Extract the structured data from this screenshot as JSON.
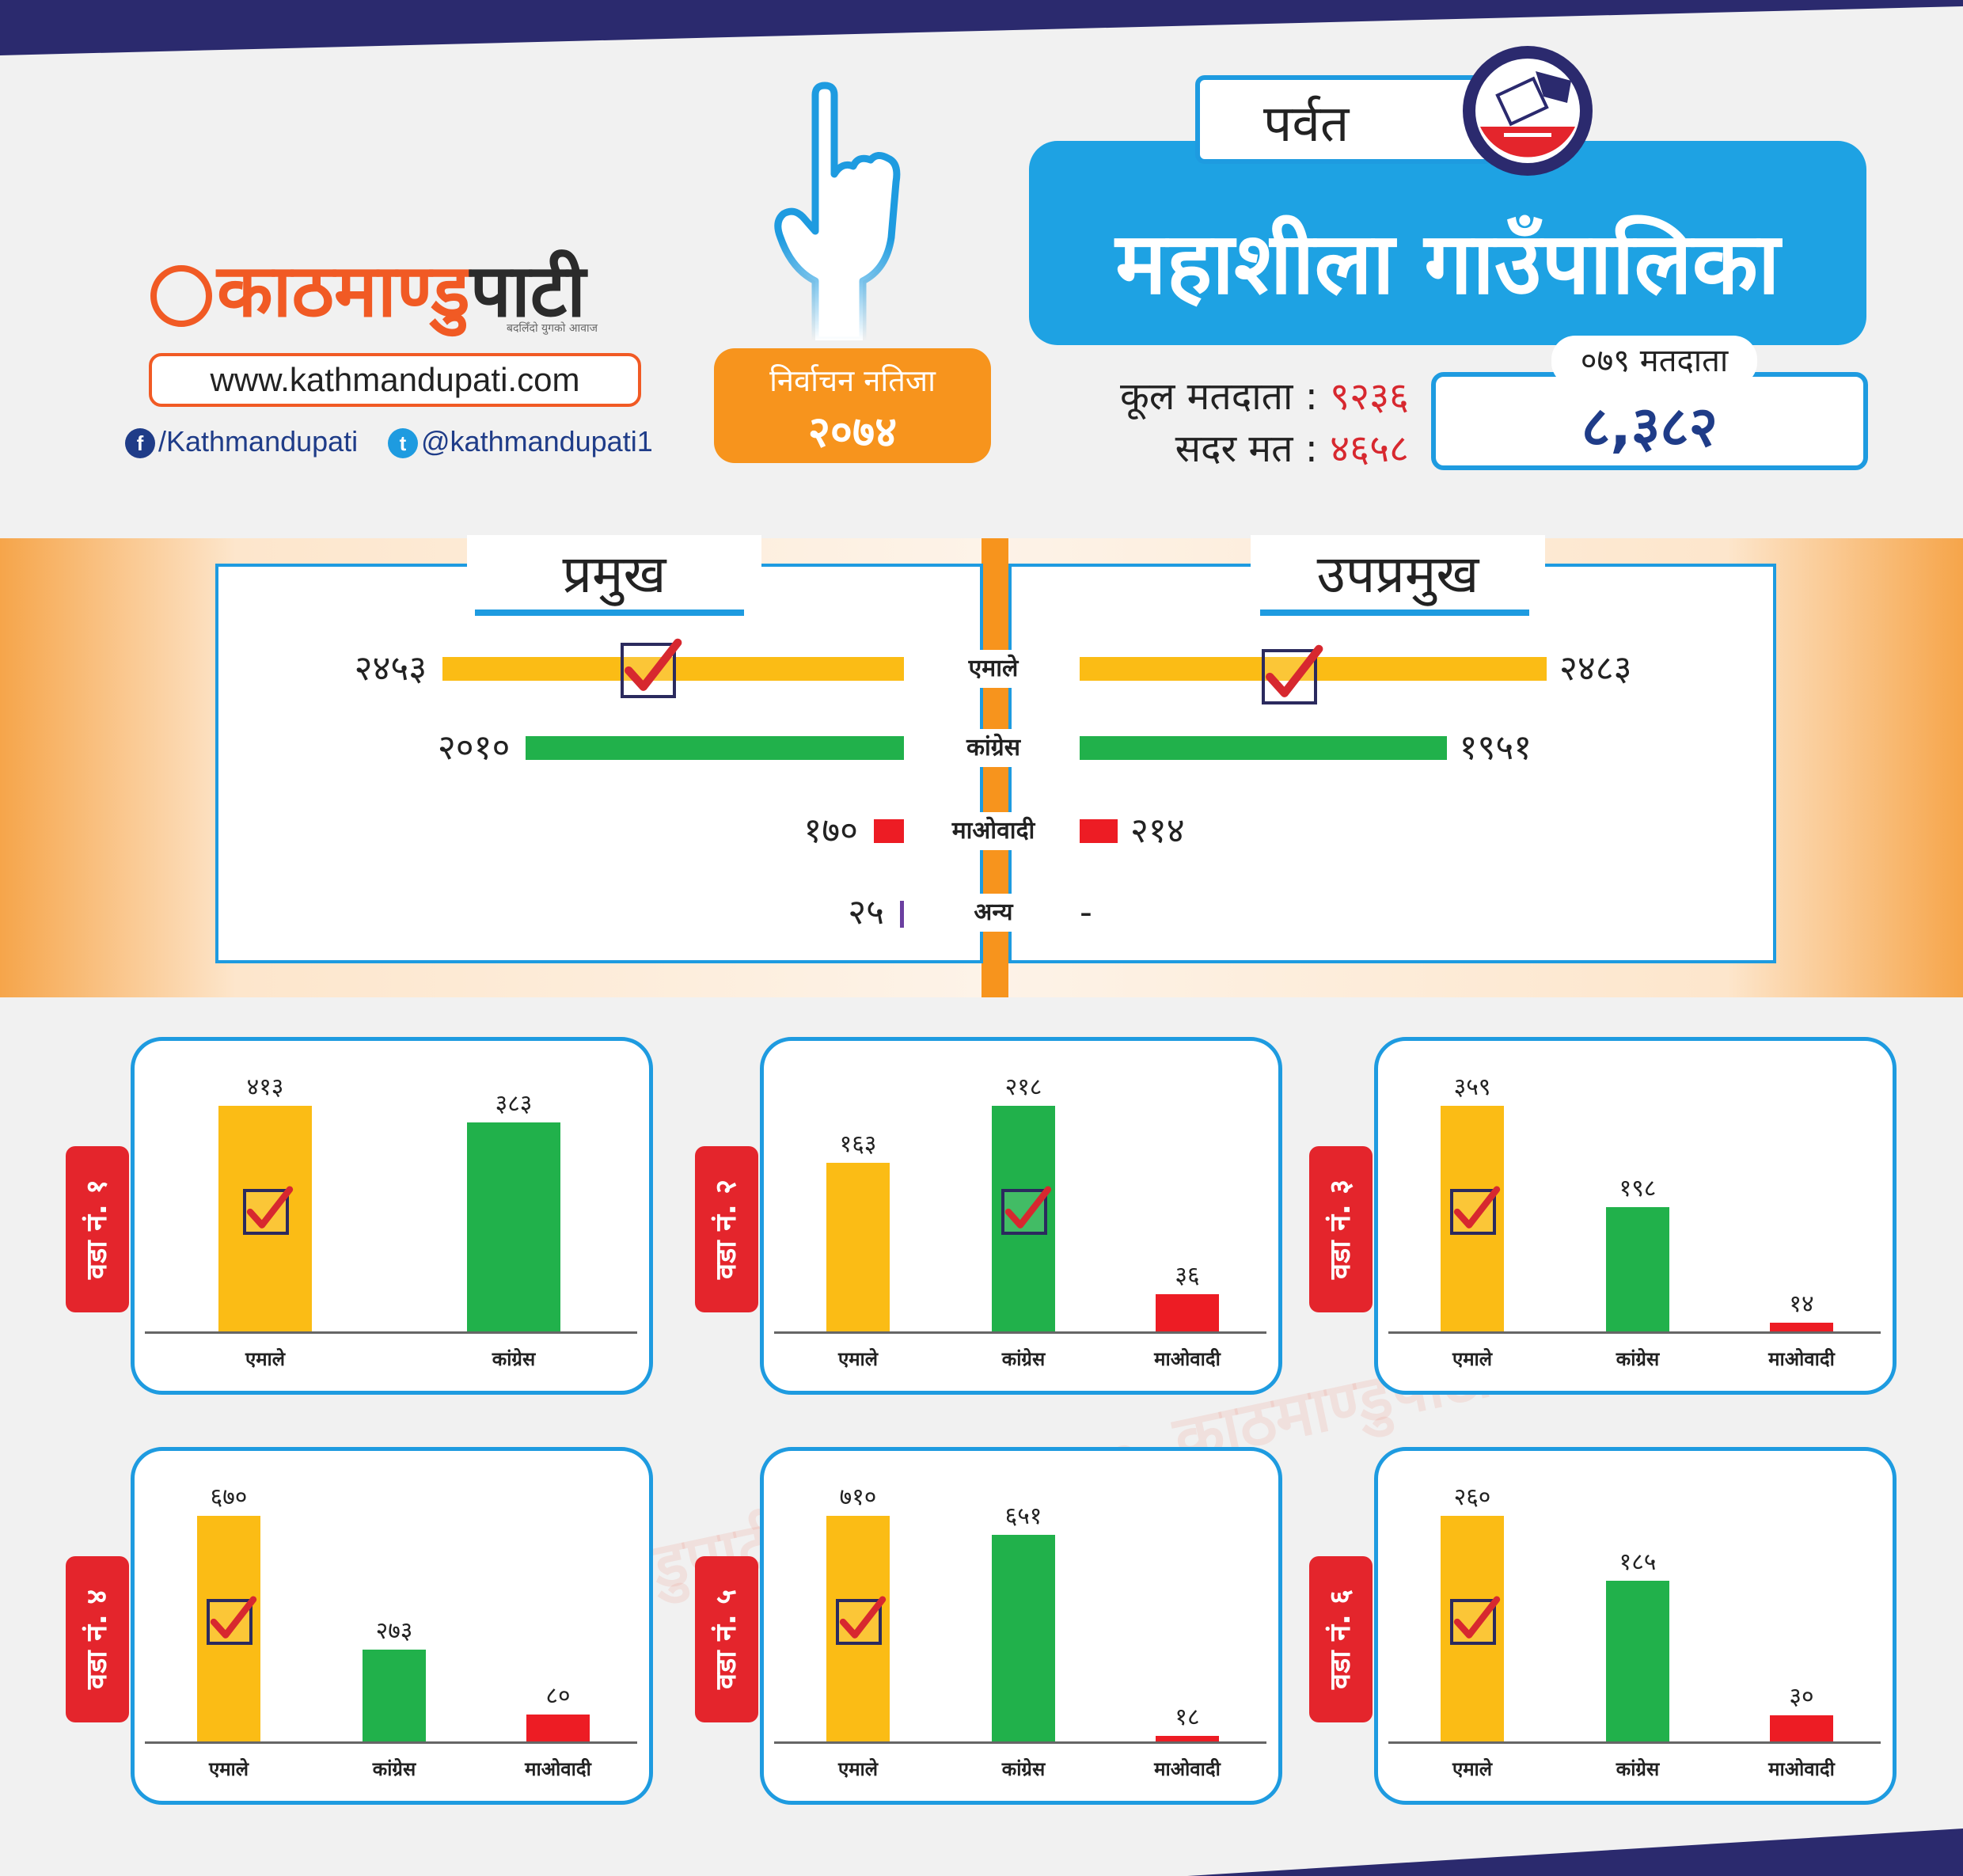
{
  "brand": {
    "logo_prefix": "काठमाण्डु",
    "logo_suffix": "पाटी",
    "tagline": "बदलिँदो युगको आवाज",
    "website": "www.kathmandupati.com",
    "facebook": "/Kathmandupati",
    "twitter": "@kathmandupati1",
    "orange": "#f15a24",
    "blue": "#1e9be0",
    "navy": "#1f3c88"
  },
  "badge": {
    "line1": "निर्वाचन नतिजा",
    "line2": "२०७४"
  },
  "header": {
    "district": "पर्वत",
    "municipality": "महाशीला गाउँपालिका",
    "total_voters_label": "कूल मतदाता :",
    "total_voters_value": "९२३६",
    "valid_votes_label": "सदर मत :",
    "valid_votes_value": "४६५८",
    "voters_079_label": "०७९ मतदाता",
    "voters_079_value": "८,३८२"
  },
  "colors": {
    "एमाले": "#fbbc15",
    "कांग्रेस": "#21b14b",
    "माओवादी": "#ed1c24",
    "अन्य": "#6b3fa0"
  },
  "chart_data": [
    {
      "type": "bar",
      "title": "प्रमुख",
      "categories": [
        "एमाले",
        "कांग्रेस",
        "माओवादी",
        "अन्य"
      ],
      "values": [
        2453,
        2010,
        170,
        25
      ],
      "value_labels": [
        "२४५३",
        "२०१०",
        "१७०",
        "२५"
      ],
      "winner": "एमाले"
    },
    {
      "type": "bar",
      "title": "उपप्रमुख",
      "categories": [
        "एमाले",
        "कांग्रेस",
        "माओवादी",
        "अन्य"
      ],
      "values": [
        2483,
        1951,
        214,
        null
      ],
      "value_labels": [
        "२४८३",
        "१९५१",
        "२१४",
        "-"
      ],
      "winner": "एमाले"
    },
    {
      "type": "bar",
      "title": "वडा नं. १",
      "categories": [
        "एमाले",
        "कांग्रेस"
      ],
      "values": [
        413,
        383
      ],
      "value_labels": [
        "४१३",
        "३८३"
      ],
      "ylim": [
        0,
        413
      ],
      "winner": "एमाले"
    },
    {
      "type": "bar",
      "title": "वडा नं. २",
      "categories": [
        "एमाले",
        "कांग्रेस",
        "माओवादी"
      ],
      "values": [
        163,
        218,
        36
      ],
      "value_labels": [
        "१६३",
        "२१८",
        "३६"
      ],
      "ylim": [
        0,
        218
      ],
      "winner": "कांग्रेस"
    },
    {
      "type": "bar",
      "title": "वडा नं. ३",
      "categories": [
        "एमाले",
        "कांग्रेस",
        "माओवादी"
      ],
      "values": [
        359,
        198,
        14
      ],
      "value_labels": [
        "३५९",
        "१९८",
        "१४"
      ],
      "ylim": [
        0,
        359
      ],
      "winner": "एमाले"
    },
    {
      "type": "bar",
      "title": "वडा नं. ४",
      "categories": [
        "एमाले",
        "कांग्रेस",
        "माओवादी"
      ],
      "values": [
        670,
        273,
        80
      ],
      "value_labels": [
        "६७०",
        "२७३",
        "८०"
      ],
      "ylim": [
        0,
        670
      ],
      "winner": "एमाले"
    },
    {
      "type": "bar",
      "title": "वडा नं. ५",
      "categories": [
        "एमाले",
        "कांग्रेस",
        "माओवादी"
      ],
      "values": [
        710,
        651,
        18
      ],
      "value_labels": [
        "७१०",
        "६५१",
        "१८"
      ],
      "ylim": [
        0,
        710
      ],
      "winner": "एमाले"
    },
    {
      "type": "bar",
      "title": "वडा नं. ६",
      "categories": [
        "एमाले",
        "कांग्रेस",
        "माओवादी"
      ],
      "values": [
        260,
        185,
        30
      ],
      "value_labels": [
        "२६०",
        "१८५",
        "३०"
      ],
      "ylim": [
        0,
        260
      ],
      "winner": "एमाले"
    }
  ]
}
